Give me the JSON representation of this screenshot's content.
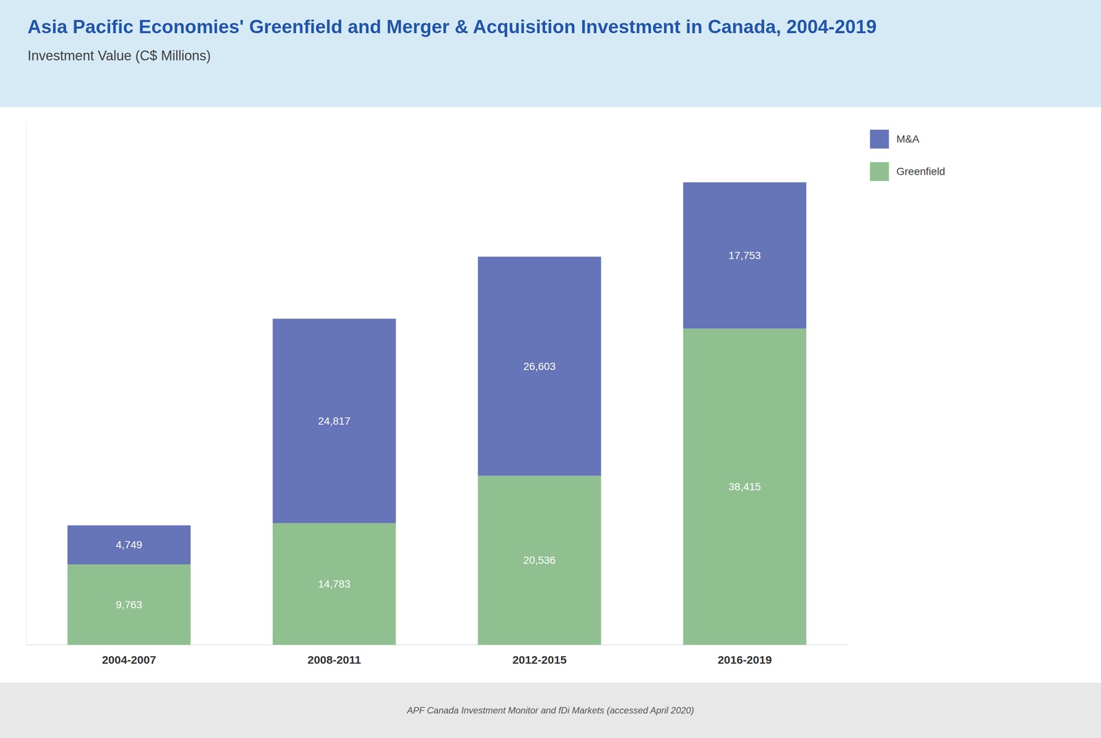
{
  "chart_data": {
    "type": "bar",
    "stacked": true,
    "title": "Asia Pacific Economies' Greenfield and Merger & Acquisition Investment in Canada, 2004-2019",
    "subtitle": "Investment Value (C$ Millions)",
    "categories": [
      "2004-2007",
      "2008-2011",
      "2012-2015",
      "2016-2019"
    ],
    "series": [
      {
        "name": "Greenfield",
        "color": "#90c090",
        "values": [
          9763,
          14783,
          20536,
          38415
        ],
        "value_labels": [
          "9,763",
          "14,783",
          "20,536",
          "38,415"
        ]
      },
      {
        "name": "M&A",
        "color": "#6674b8",
        "values": [
          4749,
          24817,
          26603,
          17753
        ],
        "value_labels": [
          "4,749",
          "24,817",
          "26,603",
          "17,753"
        ]
      }
    ],
    "ylim": [
      0,
      63469.84
    ],
    "grid": false,
    "data_labels": true,
    "tick_labels": "x",
    "legend": "right",
    "annotations": [
      "APF Canada Investment Monitor and fDi Markets (accessed April 2020)"
    ]
  }
}
